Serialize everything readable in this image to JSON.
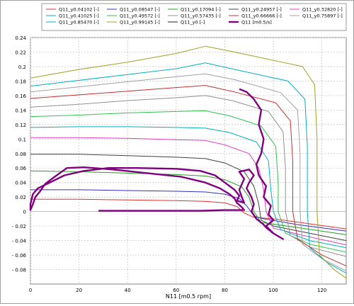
{
  "chart_data": {
    "type": "line",
    "title": "",
    "xlabel": "N11  [m0.5 rpm]",
    "ylabel": "",
    "xlim": [
      0,
      130
    ],
    "ylim": [
      -0.1,
      0.24
    ],
    "xticks": [
      "0",
      "20",
      "40",
      "60",
      "80",
      "100",
      "120"
    ],
    "yticks": [
      "0.24",
      "0.22",
      "0.2",
      "0.18",
      "0.16",
      "0.14",
      "0.12",
      "0.1",
      "0.08",
      "0.06",
      "0.04",
      "0.02",
      "0",
      "- 0.02",
      "- 0.04",
      "- 0.06",
      "- 0.08"
    ],
    "grid": true,
    "legend_position": "top",
    "legend_columns": 5,
    "series": [
      {
        "name": "Q11_y0.04102 [-]",
        "color": "#e03030",
        "values": [
          [
            0,
            0.017
          ],
          [
            20,
            0.017
          ],
          [
            40,
            0.016
          ],
          [
            60,
            0.015
          ],
          [
            72,
            0.014
          ],
          [
            80,
            0.012
          ],
          [
            85,
            0.007
          ],
          [
            88,
            -0.002
          ],
          [
            92,
            -0.008
          ],
          [
            100,
            -0.01
          ],
          [
            115,
            -0.017
          ],
          [
            130,
            -0.024
          ]
        ]
      },
      {
        "name": "Q11_y0.08547 [-]",
        "color": "#3030c0",
        "values": [
          [
            0,
            0.03
          ],
          [
            20,
            0.03
          ],
          [
            40,
            0.029
          ],
          [
            60,
            0.028
          ],
          [
            72,
            0.027
          ],
          [
            80,
            0.024
          ],
          [
            86,
            0.018
          ],
          [
            89,
            0.008
          ],
          [
            92,
            -0.006
          ],
          [
            96,
            -0.01
          ],
          [
            110,
            -0.018
          ],
          [
            130,
            -0.027
          ]
        ]
      },
      {
        "name": "Q11_y0.17094 [-]",
        "color": "#20a020",
        "values": [
          [
            0,
            0.056
          ],
          [
            20,
            0.055
          ],
          [
            40,
            0.053
          ],
          [
            60,
            0.051
          ],
          [
            72,
            0.049
          ],
          [
            80,
            0.044
          ],
          [
            87,
            0.034
          ],
          [
            90,
            0.02
          ],
          [
            92,
            0.0
          ],
          [
            95,
            -0.015
          ],
          [
            110,
            -0.022
          ],
          [
            130,
            -0.032
          ]
        ]
      },
      {
        "name": "Q11_y0.24957 [-]",
        "color": "#404040",
        "values": [
          [
            0,
            0.079
          ],
          [
            20,
            0.079
          ],
          [
            40,
            0.077
          ],
          [
            60,
            0.075
          ],
          [
            72,
            0.073
          ],
          [
            80,
            0.067
          ],
          [
            88,
            0.055
          ],
          [
            92,
            0.035
          ],
          [
            94,
            0.01
          ],
          [
            95,
            -0.012
          ],
          [
            100,
            -0.02
          ],
          [
            115,
            -0.03
          ],
          [
            130,
            -0.04
          ]
        ]
      },
      {
        "name": "Q11_y0.32820 [-]",
        "color": "#e040c0",
        "values": [
          [
            0,
            0.102
          ],
          [
            20,
            0.102
          ],
          [
            40,
            0.101
          ],
          [
            60,
            0.099
          ],
          [
            72,
            0.098
          ],
          [
            80,
            0.092
          ],
          [
            90,
            0.08
          ],
          [
            94,
            0.06
          ],
          [
            96,
            0.03
          ],
          [
            97,
            0.0
          ],
          [
            100,
            -0.023
          ],
          [
            115,
            -0.035
          ],
          [
            130,
            -0.046
          ]
        ]
      },
      {
        "name": "Q11_y0.41025 [-]",
        "color": "#00b0c0",
        "values": [
          [
            0,
            0.116
          ],
          [
            20,
            0.117
          ],
          [
            40,
            0.117
          ],
          [
            60,
            0.116
          ],
          [
            72,
            0.115
          ],
          [
            82,
            0.109
          ],
          [
            93,
            0.096
          ],
          [
            98,
            0.07
          ],
          [
            99,
            0.03
          ],
          [
            100,
            0.0
          ],
          [
            103,
            -0.025
          ],
          [
            115,
            -0.04
          ],
          [
            130,
            -0.05
          ]
        ]
      },
      {
        "name": "Q11_y0.49572 [-]",
        "color": "#30c050",
        "values": [
          [
            0,
            0.131
          ],
          [
            20,
            0.133
          ],
          [
            40,
            0.136
          ],
          [
            60,
            0.138
          ],
          [
            72,
            0.139
          ],
          [
            82,
            0.132
          ],
          [
            95,
            0.118
          ],
          [
            101,
            0.09
          ],
          [
            102,
            0.04
          ],
          [
            102,
            0.0
          ],
          [
            105,
            -0.03
          ],
          [
            115,
            -0.045
          ],
          [
            130,
            -0.056
          ]
        ]
      },
      {
        "name": "Q11_y0.57435 [-]",
        "color": "#909090",
        "values": [
          [
            0,
            0.144
          ],
          [
            20,
            0.148
          ],
          [
            40,
            0.153
          ],
          [
            60,
            0.157
          ],
          [
            72,
            0.16
          ],
          [
            83,
            0.153
          ],
          [
            98,
            0.138
          ],
          [
            104,
            0.11
          ],
          [
            105,
            0.06
          ],
          [
            105,
            0.0
          ],
          [
            107,
            -0.033
          ],
          [
            115,
            -0.049
          ],
          [
            130,
            -0.062
          ]
        ]
      },
      {
        "name": "Q11_y0.66666 [-]",
        "color": "#c03030",
        "values": [
          [
            0,
            0.156
          ],
          [
            20,
            0.161
          ],
          [
            40,
            0.166
          ],
          [
            60,
            0.171
          ],
          [
            72,
            0.174
          ],
          [
            84,
            0.165
          ],
          [
            101,
            0.15
          ],
          [
            107,
            0.125
          ],
          [
            108,
            0.07
          ],
          [
            108,
            0.0
          ],
          [
            110,
            -0.038
          ],
          [
            120,
            -0.06
          ],
          [
            130,
            -0.075
          ]
        ]
      },
      {
        "name": "Q11_y0.75897 [-]",
        "color": "#a0a0a0",
        "values": [
          [
            0,
            0.165
          ],
          [
            20,
            0.172
          ],
          [
            40,
            0.179
          ],
          [
            60,
            0.186
          ],
          [
            72,
            0.19
          ],
          [
            84,
            0.182
          ],
          [
            103,
            0.164
          ],
          [
            110,
            0.14
          ],
          [
            111,
            0.08
          ],
          [
            111,
            0.0
          ],
          [
            112,
            -0.045
          ],
          [
            120,
            -0.065
          ],
          [
            130,
            -0.082
          ]
        ]
      },
      {
        "name": "Q11_y0.85470 [-]",
        "color": "#00b0c0",
        "values": [
          [
            0,
            0.173
          ],
          [
            20,
            0.181
          ],
          [
            40,
            0.189
          ],
          [
            60,
            0.197
          ],
          [
            72,
            0.205
          ],
          [
            84,
            0.196
          ],
          [
            106,
            0.18
          ],
          [
            113,
            0.155
          ],
          [
            114,
            0.09
          ],
          [
            114,
            0.0
          ],
          [
            115,
            -0.05
          ],
          [
            122,
            -0.07
          ],
          [
            130,
            -0.085
          ]
        ]
      },
      {
        "name": "Q11_y0.99145 [-]",
        "color": "#a0a020",
        "values": [
          [
            0,
            0.184
          ],
          [
            20,
            0.196
          ],
          [
            40,
            0.206
          ],
          [
            60,
            0.218
          ],
          [
            72,
            0.228
          ],
          [
            84,
            0.22
          ],
          [
            112,
            0.2
          ],
          [
            117,
            0.175
          ],
          [
            118,
            0.1
          ],
          [
            118,
            0.0
          ],
          [
            119,
            -0.06
          ],
          [
            125,
            -0.08
          ],
          [
            130,
            -0.092
          ]
        ]
      },
      {
        "name": "Q11_y0 [-]",
        "color": "#202020",
        "values": []
      },
      {
        "name": "Q11  [m0.5/s]",
        "color": "#800080",
        "values": [
          [
            28,
            0.001
          ],
          [
            70,
            0.001
          ],
          [
            80,
            0.002
          ],
          [
            86,
            0.002
          ],
          [
            88,
            0.002
          ],
          [
            87,
            0.006
          ],
          [
            85,
            0.012
          ],
          [
            84,
            0.018
          ],
          [
            82,
            0.024
          ],
          [
            78,
            0.032
          ],
          [
            72,
            0.04
          ],
          [
            62,
            0.048
          ],
          [
            48,
            0.053
          ],
          [
            34,
            0.058
          ],
          [
            22,
            0.061
          ],
          [
            15,
            0.06
          ],
          [
            10,
            0.048
          ],
          [
            6,
            0.038
          ],
          [
            4,
            0.028
          ],
          [
            2,
            0.02
          ],
          [
            1,
            0.01
          ],
          [
            0,
            0.002
          ],
          [
            0,
            0.01
          ],
          [
            1,
            0.024
          ],
          [
            3,
            0.032
          ],
          [
            8,
            0.04
          ],
          [
            14,
            0.05
          ],
          [
            22,
            0.056
          ],
          [
            32,
            0.06
          ],
          [
            44,
            0.06
          ],
          [
            60,
            0.059
          ],
          [
            70,
            0.056
          ],
          [
            76,
            0.05
          ],
          [
            80,
            0.04
          ],
          [
            84,
            0.03
          ],
          [
            86,
            0.022
          ],
          [
            85,
            0.015
          ],
          [
            88,
            0.012
          ],
          [
            87,
            0.02
          ],
          [
            86,
            0.03
          ],
          [
            88,
            0.045
          ],
          [
            86,
            0.055
          ],
          [
            90,
            0.058
          ],
          [
            92,
            0.05
          ],
          [
            90,
            0.04
          ],
          [
            89,
            0.032
          ],
          [
            91,
            0.02
          ],
          [
            92,
            0.01
          ],
          [
            91,
            0.0
          ],
          [
            93,
            -0.01
          ],
          [
            96,
            -0.018
          ],
          [
            97,
            -0.022
          ],
          [
            100,
            -0.03
          ],
          [
            104,
            -0.038
          ],
          [
            100,
            -0.03
          ],
          [
            97,
            -0.02
          ],
          [
            100,
            -0.012
          ],
          [
            98,
            -0.004
          ],
          [
            99,
            0.008
          ],
          [
            96,
            0.02
          ],
          [
            97,
            0.035
          ],
          [
            94,
            0.05
          ],
          [
            93,
            0.065
          ],
          [
            95,
            0.08
          ],
          [
            96,
            0.1
          ],
          [
            94,
            0.12
          ],
          [
            95,
            0.14
          ],
          [
            92,
            0.155
          ],
          [
            89,
            0.165
          ],
          [
            86,
            0.169
          ]
        ]
      }
    ]
  }
}
